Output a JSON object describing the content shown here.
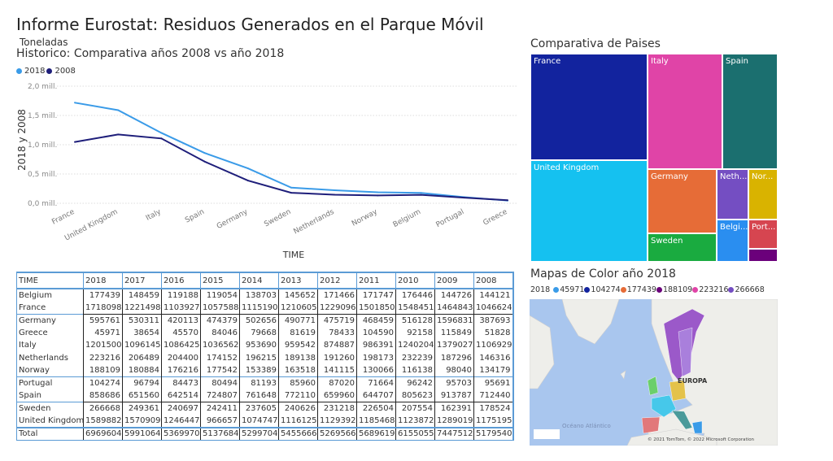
{
  "header": {
    "title": "Informe Eurostat: Residuos Generados en el Parque Móvil"
  },
  "line_chart": {
    "units": "Toneladas",
    "subtitle": "Historico: Comparativa años 2008 vs año 2018"
  },
  "chart_data": {
    "type": "line",
    "title": "Historico: Comparativa años 2008 vs año 2018",
    "xlabel": "TIME",
    "ylabel": "2018 y 2008",
    "categories": [
      "France",
      "United Kingdom",
      "Italy",
      "Spain",
      "Germany",
      "Sweden",
      "Netherlands",
      "Norway",
      "Belgium",
      "Portugal",
      "Greece"
    ],
    "yticks": [
      "0,0 mill.",
      "0,5 mill.",
      "1,0 mill.",
      "1,5 mill.",
      "2,0 mill."
    ],
    "ylim": [
      0,
      2.0
    ],
    "grid": true,
    "legend": "top-left",
    "series": [
      {
        "name": "2018",
        "color": "#3a9be8",
        "values": [
          1.718,
          1.59,
          1.202,
          0.859,
          0.596,
          0.267,
          0.223,
          0.188,
          0.177,
          0.104,
          0.046
        ]
      },
      {
        "name": "2008",
        "color": "#1e1e7a",
        "values": [
          1.047,
          1.175,
          1.107,
          0.712,
          0.388,
          0.179,
          0.146,
          0.134,
          0.144,
          0.096,
          0.052
        ]
      }
    ]
  },
  "treemap": {
    "title": "Comparativa de Paises",
    "tiles": [
      {
        "label": "France",
        "color": "#12239e"
      },
      {
        "label": "United Kingdom",
        "color": "#15c1f0"
      },
      {
        "label": "Italy",
        "color": "#e044a7"
      },
      {
        "label": "Spain",
        "color": "#1b6f6f"
      },
      {
        "label": "Germany",
        "color": "#e66c37"
      },
      {
        "label": "Sweden",
        "color": "#1aab40"
      },
      {
        "label": "Neth...",
        "color": "#744ec2"
      },
      {
        "label": "Nor...",
        "color": "#d9b300"
      },
      {
        "label": "Belgi...",
        "color": "#2a8ef0"
      },
      {
        "label": "Port...",
        "color": "#d64550"
      },
      {
        "label": "",
        "color": "#6b007b"
      }
    ]
  },
  "map": {
    "title": "Mapas de Color año 2018",
    "legend_label": "2018",
    "legend": [
      {
        "value": "45971",
        "color": "#3a9be8"
      },
      {
        "value": "104274",
        "color": "#12239e"
      },
      {
        "value": "177439",
        "color": "#e66c37"
      },
      {
        "value": "188109",
        "color": "#6b007b"
      },
      {
        "value": "223216",
        "color": "#e044a7"
      },
      {
        "value": "266668",
        "color": "#744ec2"
      }
    ],
    "region_label": "EUROPA",
    "ocean_label": "Océano Atlántico",
    "attribution": "© 2021 TomTom, © 2022 Microsoft Corporation"
  },
  "table": {
    "headers": [
      "TIME",
      "2018",
      "2017",
      "2016",
      "2015",
      "2014",
      "2013",
      "2012",
      "2011",
      "2010",
      "2009",
      "2008"
    ],
    "rows": [
      [
        "Belgium",
        "177439",
        "148459",
        "119188",
        "119054",
        "138703",
        "145652",
        "171466",
        "171747",
        "176446",
        "144726",
        "144121"
      ],
      [
        "France",
        "1718098",
        "1221498",
        "1103927",
        "1057588",
        "1115190",
        "1210605",
        "1229096",
        "1501850",
        "1548451",
        "1464843",
        "1046624"
      ],
      [
        "Germany",
        "595761",
        "530311",
        "420113",
        "474379",
        "502656",
        "490771",
        "475719",
        "468459",
        "516128",
        "1596831",
        "387693"
      ],
      [
        "Greece",
        "45971",
        "38654",
        "45570",
        "84046",
        "79668",
        "81619",
        "78433",
        "104590",
        "92158",
        "115849",
        "51828"
      ],
      [
        "Italy",
        "1201500",
        "1096145",
        "1086425",
        "1036562",
        "953690",
        "959542",
        "874887",
        "986391",
        "1240204",
        "1379027",
        "1106929"
      ],
      [
        "Netherlands",
        "223216",
        "206489",
        "204400",
        "174152",
        "196215",
        "189138",
        "191260",
        "198173",
        "232239",
        "187296",
        "146316"
      ],
      [
        "Norway",
        "188109",
        "180884",
        "176216",
        "177542",
        "153389",
        "163518",
        "141115",
        "130066",
        "116138",
        "98040",
        "134179"
      ],
      [
        "Portugal",
        "104274",
        "96794",
        "84473",
        "80494",
        "81193",
        "85960",
        "87020",
        "71664",
        "96242",
        "95703",
        "95691"
      ],
      [
        "Spain",
        "858686",
        "651560",
        "642514",
        "724807",
        "761648",
        "772110",
        "659960",
        "644707",
        "805623",
        "913787",
        "712440"
      ],
      [
        "Sweden",
        "266668",
        "249361",
        "240697",
        "242411",
        "237605",
        "240626",
        "231218",
        "226504",
        "207554",
        "162391",
        "178524"
      ],
      [
        "United Kingdom",
        "1589882",
        "1570909",
        "1246447",
        "966657",
        "1074747",
        "1116125",
        "1129392",
        "1185468",
        "1123872",
        "1289019",
        "1175195"
      ]
    ],
    "total": [
      "Total",
      "6969604",
      "5991064",
      "5369970",
      "5137684",
      "5299704",
      "5455666",
      "5269566",
      "5689619",
      "6155055",
      "7447512",
      "5179540"
    ]
  }
}
